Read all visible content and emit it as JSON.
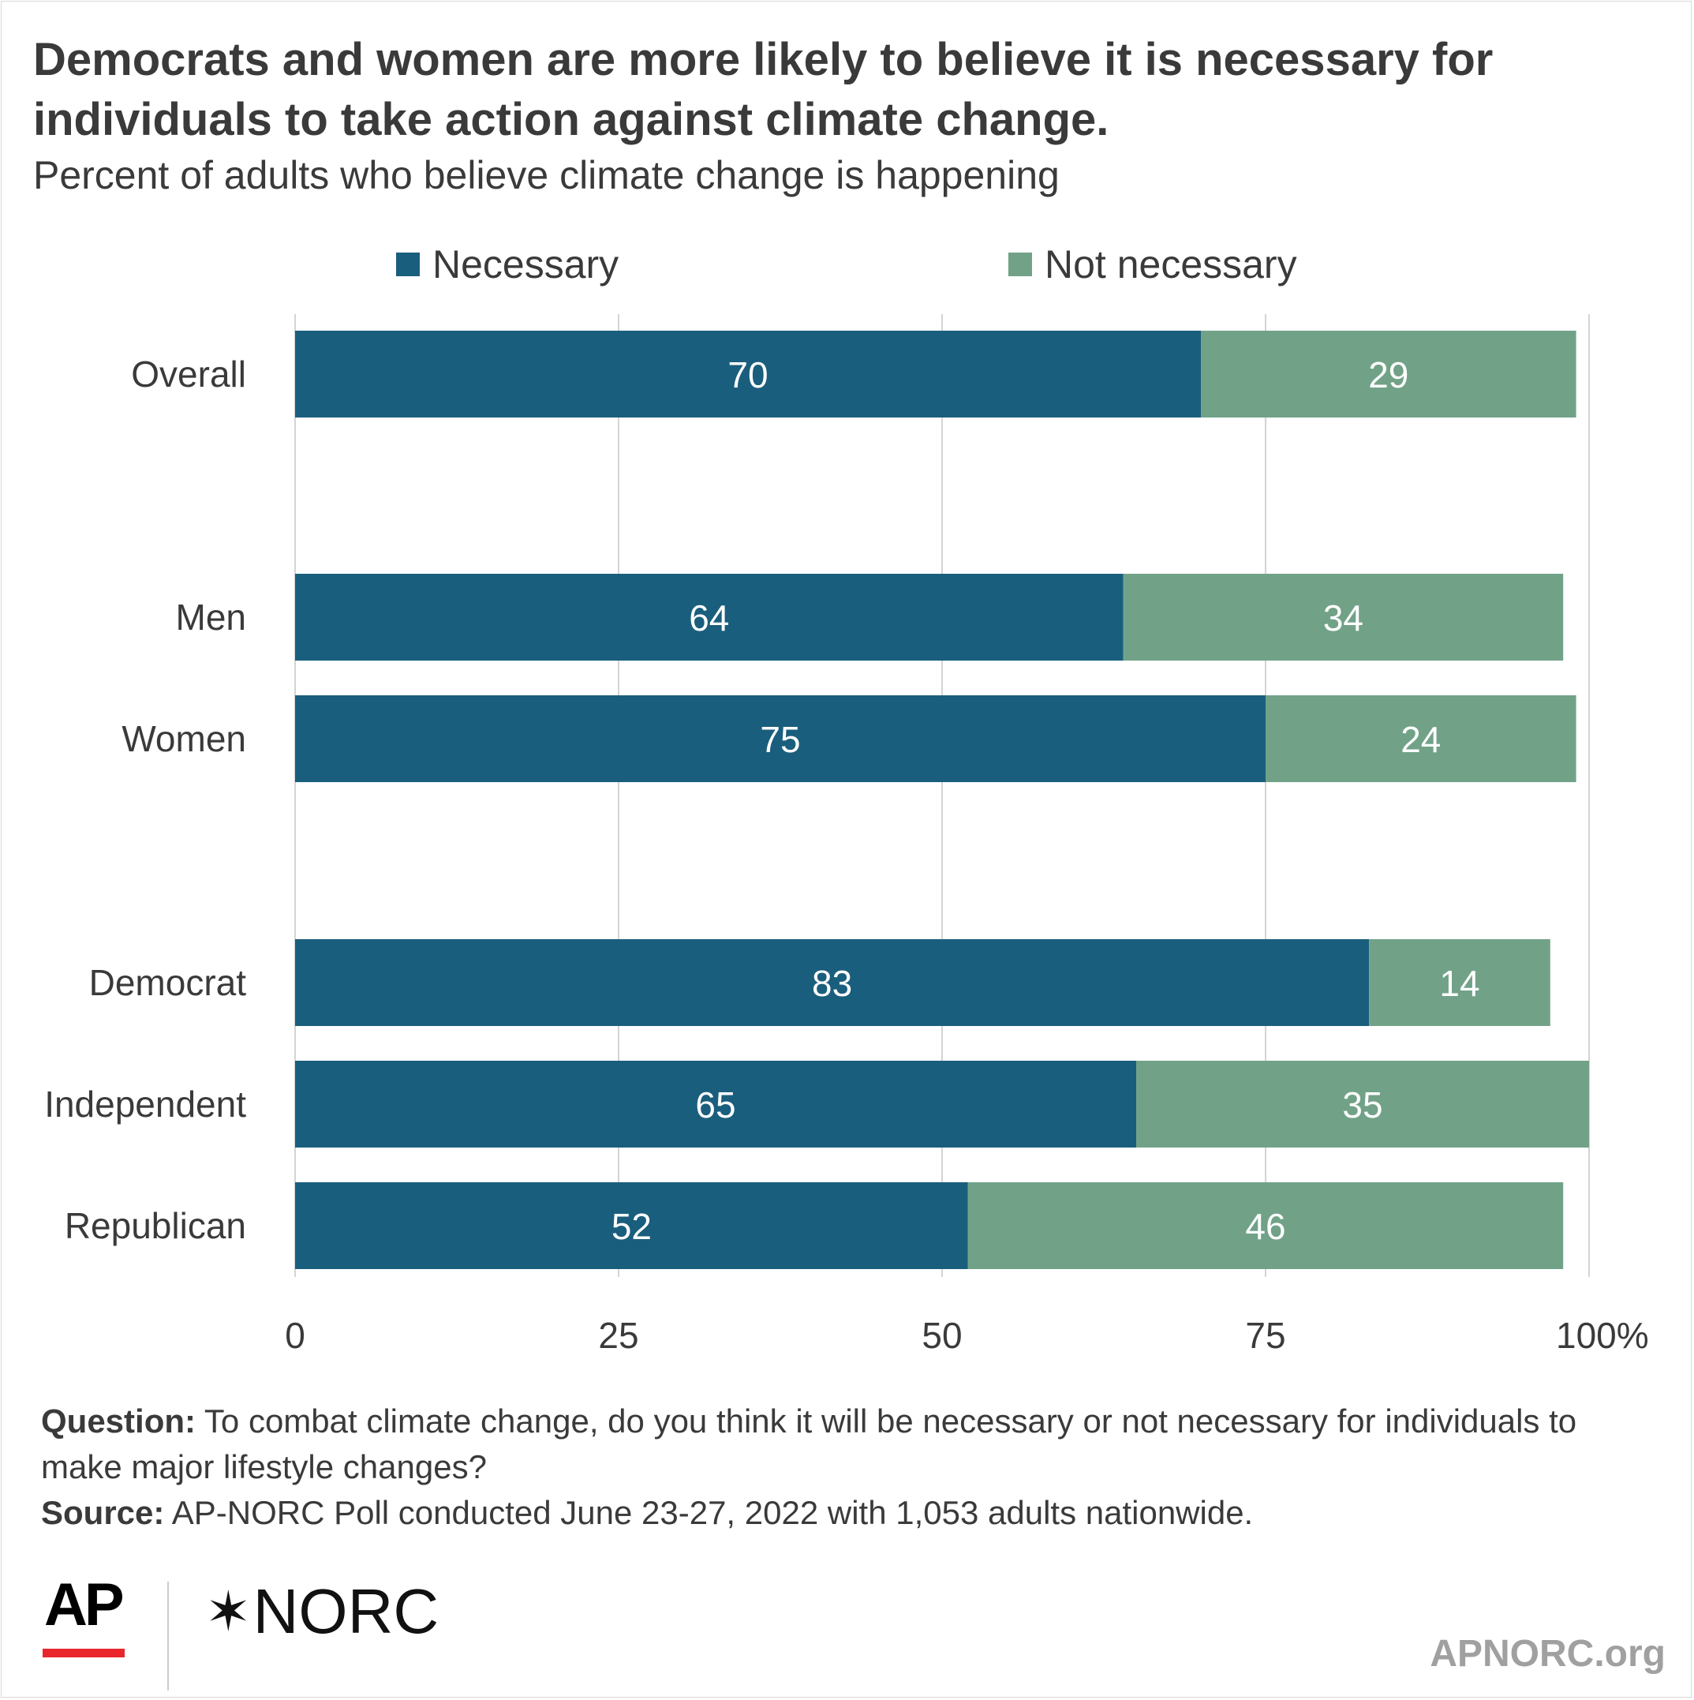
{
  "title": "Democrats and women are more likely to believe it is necessary for individuals to take action against climate change.",
  "subtitle": "Percent of adults who believe climate change is happening",
  "colors": {
    "necessary": "#1a5e7d",
    "not_necessary": "#71a288",
    "grid": "#d4d4d4",
    "text": "#3a3a3a"
  },
  "chart_data": {
    "type": "bar",
    "orientation": "horizontal",
    "stacked": true,
    "categories": [
      "Overall",
      "Men",
      "Women",
      "Democrat",
      "Independent",
      "Republican"
    ],
    "series": [
      {
        "name": "Necessary",
        "values": [
          70,
          64,
          75,
          83,
          65,
          52
        ]
      },
      {
        "name": "Not necessary",
        "values": [
          29,
          34,
          24,
          14,
          35,
          46
        ]
      }
    ],
    "xlim": [
      0,
      100
    ],
    "x_ticks": [
      "0",
      "25",
      "50",
      "75",
      "100%"
    ],
    "grid": true,
    "legend": "top"
  },
  "footnote": {
    "question_label": "Question:",
    "question_text": "To combat climate change, do you think it will be necessary or not necessary for individuals to make major lifestyle changes?",
    "source_label": "Source:",
    "source_text": "AP-NORC Poll conducted June 23-27, 2022 with 1,053 adults nationwide."
  },
  "logos": {
    "ap": "AP",
    "norc": "NORC",
    "norc_icon": "star-icon",
    "site": "APNORC.org"
  }
}
